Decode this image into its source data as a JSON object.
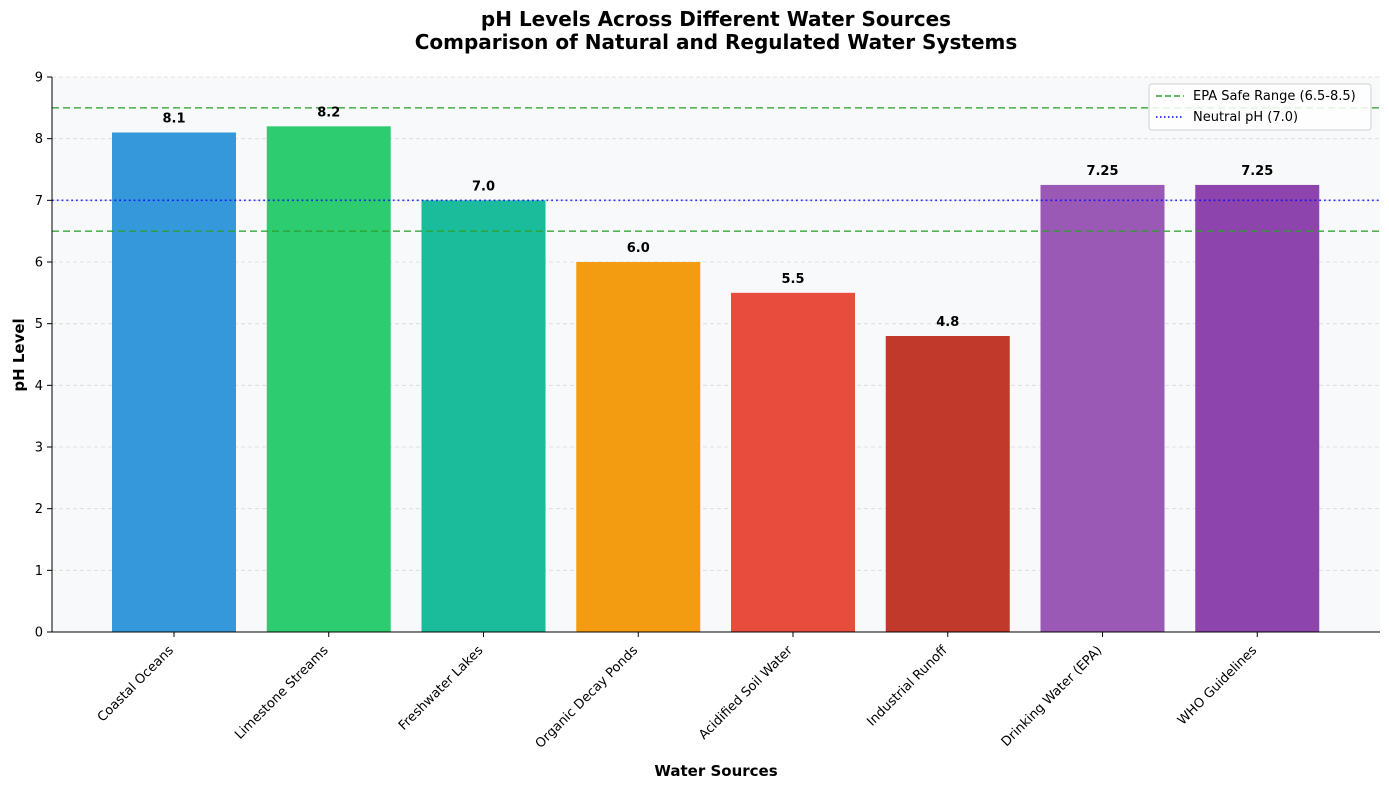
{
  "chart_data": {
    "type": "bar",
    "title": "pH Levels Across Different Water Sources",
    "subtitle": "Comparison of Natural and Regulated Water Systems",
    "xlabel": "Water Sources",
    "ylabel": "pH Level",
    "ylim": [
      0,
      9
    ],
    "yticks": [
      "0",
      "1",
      "2",
      "3",
      "4",
      "5",
      "6",
      "7",
      "8",
      "9"
    ],
    "grid": true,
    "legend_position": "top-right",
    "categories": [
      "Coastal Oceans",
      "Limestone Streams",
      "Freshwater Lakes",
      "Organic Decay Ponds",
      "Acidified Soil Water",
      "Industrial Runoff",
      "Drinking Water (EPA)",
      "WHO Guidelines"
    ],
    "values": [
      8.1,
      8.2,
      7.0,
      6.0,
      5.5,
      4.8,
      7.25,
      7.25
    ],
    "value_labels": [
      "8.1",
      "8.2",
      "7.0",
      "6.0",
      "5.5",
      "4.8",
      "7.25",
      "7.25"
    ],
    "colors": [
      "#3498db",
      "#2ecc71",
      "#1abc9c",
      "#f39c12",
      "#e74c3c",
      "#c0392b",
      "#9b59b6",
      "#8e44ad"
    ],
    "reference_lines": [
      {
        "name": "EPA Safe Range (6.5-8.5)",
        "values": [
          6.5,
          8.5
        ],
        "style": "dashed",
        "color": "#2ca02c"
      },
      {
        "name": "Neutral pH (7.0)",
        "values": [
          7.0
        ],
        "style": "dotted",
        "color": "#0000ff"
      }
    ]
  }
}
